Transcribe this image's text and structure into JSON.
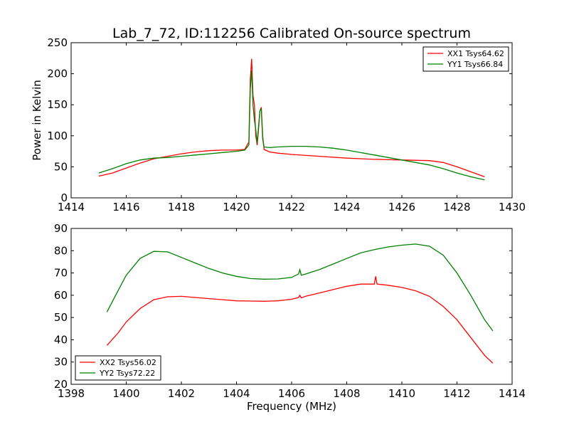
{
  "colors": {
    "red_series": "#ff0000",
    "green_series": "#008000"
  },
  "chart_data": [
    {
      "type": "line",
      "title": "Lab_7_72, ID:112256 Calibrated On-source spectrum",
      "xlabel": "",
      "ylabel": "Power in Kelvin",
      "xlim": [
        1414,
        1430
      ],
      "ylim": [
        0,
        250
      ],
      "xticks": [
        "1414",
        "1416",
        "1418",
        "1420",
        "1422",
        "1424",
        "1426",
        "1428",
        "1430"
      ],
      "yticks": [
        "0",
        "50",
        "100",
        "150",
        "200",
        "250"
      ],
      "legend_position": "top-right",
      "grid": false,
      "series": [
        {
          "name": "XX1 Tsys64.62",
          "color": "#ff0000",
          "points": [
            [
              1415.0,
              35
            ],
            [
              1415.5,
              40
            ],
            [
              1416.0,
              48
            ],
            [
              1416.5,
              56
            ],
            [
              1417.0,
              63
            ],
            [
              1417.5,
              67
            ],
            [
              1418.0,
              71
            ],
            [
              1418.5,
              74
            ],
            [
              1419.0,
              76
            ],
            [
              1419.5,
              77
            ],
            [
              1420.0,
              77
            ],
            [
              1420.3,
              78
            ],
            [
              1420.45,
              90
            ],
            [
              1420.5,
              190
            ],
            [
              1420.55,
              224
            ],
            [
              1420.6,
              165
            ],
            [
              1420.65,
              150
            ],
            [
              1420.7,
              100
            ],
            [
              1420.75,
              85
            ],
            [
              1420.8,
              110
            ],
            [
              1420.85,
              140
            ],
            [
              1420.9,
              146
            ],
            [
              1420.95,
              100
            ],
            [
              1421.0,
              78
            ],
            [
              1421.2,
              74
            ],
            [
              1421.5,
              72
            ],
            [
              1422.0,
              70
            ],
            [
              1423.0,
              67
            ],
            [
              1424.0,
              64
            ],
            [
              1425.0,
              62
            ],
            [
              1426.0,
              61
            ],
            [
              1427.0,
              60
            ],
            [
              1427.5,
              57
            ],
            [
              1428.0,
              50
            ],
            [
              1428.5,
              42
            ],
            [
              1429.0,
              34
            ]
          ]
        },
        {
          "name": "YY1 Tsys66.84",
          "color": "#008000",
          "points": [
            [
              1415.0,
              40
            ],
            [
              1415.5,
              47
            ],
            [
              1416.0,
              55
            ],
            [
              1416.5,
              61
            ],
            [
              1417.0,
              64
            ],
            [
              1417.5,
              65
            ],
            [
              1418.0,
              67
            ],
            [
              1418.5,
              69
            ],
            [
              1419.0,
              71
            ],
            [
              1419.5,
              73
            ],
            [
              1420.0,
              75
            ],
            [
              1420.3,
              77
            ],
            [
              1420.45,
              85
            ],
            [
              1420.5,
              175
            ],
            [
              1420.55,
              205
            ],
            [
              1420.6,
              150
            ],
            [
              1420.65,
              125
            ],
            [
              1420.7,
              110
            ],
            [
              1420.75,
              88
            ],
            [
              1420.8,
              115
            ],
            [
              1420.85,
              140
            ],
            [
              1420.9,
              143
            ],
            [
              1420.95,
              95
            ],
            [
              1421.0,
              82
            ],
            [
              1421.2,
              81
            ],
            [
              1421.5,
              82
            ],
            [
              1422.0,
              83
            ],
            [
              1422.5,
              83
            ],
            [
              1423.0,
              82
            ],
            [
              1423.5,
              80
            ],
            [
              1424.0,
              77
            ],
            [
              1425.0,
              69
            ],
            [
              1426.0,
              61
            ],
            [
              1427.0,
              53
            ],
            [
              1427.5,
              47
            ],
            [
              1428.0,
              40
            ],
            [
              1428.5,
              34
            ],
            [
              1429.0,
              29
            ]
          ]
        }
      ]
    },
    {
      "type": "line",
      "title": "",
      "xlabel": "Frequency (MHz)",
      "ylabel": "",
      "xlim": [
        1398,
        1414
      ],
      "ylim": [
        20,
        90
      ],
      "xticks": [
        "1398",
        "1400",
        "1402",
        "1404",
        "1406",
        "1408",
        "1410",
        "1412",
        "1414"
      ],
      "yticks": [
        "20",
        "30",
        "40",
        "50",
        "60",
        "70",
        "80",
        "90"
      ],
      "legend_position": "bottom-left",
      "grid": false,
      "series": [
        {
          "name": "XX2 Tsys56.02",
          "color": "#ff0000",
          "points": [
            [
              1399.3,
              37.5
            ],
            [
              1399.7,
              43
            ],
            [
              1400.0,
              48
            ],
            [
              1400.5,
              54
            ],
            [
              1401.0,
              58
            ],
            [
              1401.5,
              59.3
            ],
            [
              1402.0,
              59.5
            ],
            [
              1402.5,
              59
            ],
            [
              1403.0,
              58.5
            ],
            [
              1403.5,
              58
            ],
            [
              1404.0,
              57.5
            ],
            [
              1404.5,
              57.4
            ],
            [
              1405.0,
              57.3
            ],
            [
              1405.5,
              57.5
            ],
            [
              1406.0,
              58.2
            ],
            [
              1406.25,
              59
            ],
            [
              1406.3,
              60
            ],
            [
              1406.35,
              58.8
            ],
            [
              1406.5,
              59.5
            ],
            [
              1407.0,
              61
            ],
            [
              1407.5,
              62.5
            ],
            [
              1408.0,
              64
            ],
            [
              1408.5,
              65
            ],
            [
              1409.0,
              65
            ],
            [
              1409.05,
              68.5
            ],
            [
              1409.1,
              65
            ],
            [
              1409.5,
              64.5
            ],
            [
              1410.0,
              63.5
            ],
            [
              1410.5,
              62
            ],
            [
              1411.0,
              59.5
            ],
            [
              1411.5,
              55
            ],
            [
              1412.0,
              49
            ],
            [
              1412.5,
              41
            ],
            [
              1413.0,
              33
            ],
            [
              1413.3,
              29.5
            ]
          ]
        },
        {
          "name": "YY2 Tsys72.22",
          "color": "#008000",
          "points": [
            [
              1399.3,
              52.5
            ],
            [
              1399.7,
              62
            ],
            [
              1400.0,
              69
            ],
            [
              1400.5,
              76.5
            ],
            [
              1401.0,
              79.7
            ],
            [
              1401.5,
              79.5
            ],
            [
              1402.0,
              77
            ],
            [
              1402.5,
              74.5
            ],
            [
              1403.0,
              72
            ],
            [
              1403.5,
              70
            ],
            [
              1404.0,
              68.5
            ],
            [
              1404.5,
              67.5
            ],
            [
              1405.0,
              67.2
            ],
            [
              1405.5,
              67.3
            ],
            [
              1406.0,
              68
            ],
            [
              1406.25,
              69.5
            ],
            [
              1406.3,
              71.5
            ],
            [
              1406.35,
              69
            ],
            [
              1406.5,
              69.5
            ],
            [
              1407.0,
              71.5
            ],
            [
              1407.5,
              74
            ],
            [
              1408.0,
              76.5
            ],
            [
              1408.5,
              79
            ],
            [
              1409.0,
              80.5
            ],
            [
              1409.5,
              81.7
            ],
            [
              1410.0,
              82.5
            ],
            [
              1410.5,
              83
            ],
            [
              1411.0,
              82
            ],
            [
              1411.5,
              78
            ],
            [
              1412.0,
              70
            ],
            [
              1412.5,
              60
            ],
            [
              1413.0,
              49
            ],
            [
              1413.3,
              44
            ]
          ]
        }
      ]
    }
  ]
}
